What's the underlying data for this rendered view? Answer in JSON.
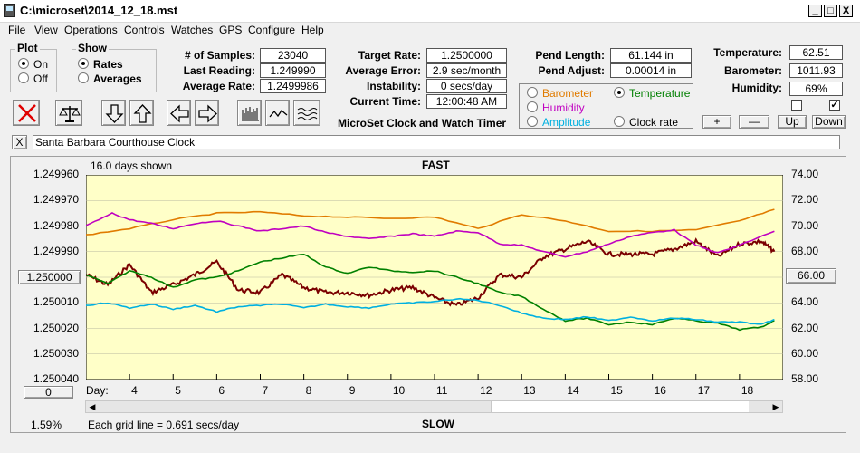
{
  "window": {
    "title": "C:\\microset\\2014_12_18.mst",
    "min": "_",
    "max": "□",
    "close": "X"
  },
  "menu": [
    "File",
    "View",
    "Operations",
    "Controls",
    "Watches",
    "GPS",
    "Configure",
    "Help"
  ],
  "plot_group": {
    "label": "Plot",
    "options": [
      "On",
      "Off"
    ],
    "selected": "On"
  },
  "show_group": {
    "label": "Show",
    "options": [
      "Rates",
      "Averages"
    ],
    "selected": "Rates"
  },
  "stats_left": [
    {
      "label": "# of Samples:",
      "value": "23040"
    },
    {
      "label": "Last Reading:",
      "value": "1.249990"
    },
    {
      "label": "Average Rate:",
      "value": "1.2499986"
    }
  ],
  "stats_mid": [
    {
      "label": "Target Rate:",
      "value": "1.2500000"
    },
    {
      "label": "Average Error:",
      "value": "2.9 sec/month"
    },
    {
      "label": "Instability:",
      "value": "0 secs/day"
    },
    {
      "label": "Current Time:",
      "value": "12:00:48 AM"
    }
  ],
  "app_name": "MicroSet Clock and Watch Timer",
  "pend": [
    {
      "label": "Pend Length:",
      "value": "61.144 in"
    },
    {
      "label": "Pend Adjust:",
      "value": "0.00014 in"
    }
  ],
  "env": [
    {
      "label": "Temperature:",
      "value": "62.51"
    },
    {
      "label": "Barometer:",
      "value": "1011.93"
    },
    {
      "label": "Humidity:",
      "value": "69%"
    }
  ],
  "env_checks": [
    false,
    true
  ],
  "env_buttons": [
    "+",
    "—",
    "Up",
    "Down"
  ],
  "sensor_options": [
    {
      "label": "Barometer",
      "color": "#e07b00",
      "selected": false
    },
    {
      "label": "Temperature",
      "color": "#008000",
      "selected": true
    },
    {
      "label": "Humidity",
      "color": "#c000c0",
      "selected": false
    },
    {
      "label": "Amplitude",
      "color": "#00b0e0",
      "selected": false
    },
    {
      "label": "Clock rate",
      "color": "#000000",
      "selected": false
    }
  ],
  "clock_name": "Santa Barbara Courthouse Clock",
  "clear_label": "X",
  "chart_data": {
    "type": "line",
    "top_label": "FAST",
    "bottom_label": "SLOW",
    "days_shown": "16.0 days shown",
    "grid_note": "Each grid line = 0.691 secs/day",
    "percent": "1.59%",
    "x_title": "Day:",
    "x_ticks": [
      4,
      5,
      6,
      7,
      8,
      9,
      10,
      11,
      12,
      13,
      14,
      15,
      16,
      17,
      18
    ],
    "xlim": [
      3,
      19
    ],
    "left_axis": {
      "ticks": [
        "1.249960",
        "1.249970",
        "1.249980",
        "1.249990",
        "1.250000",
        "1.250010",
        "1.250020",
        "1.250030",
        "1.250040"
      ],
      "ylim": [
        1.24996,
        1.25004
      ],
      "reference_button": "1.250000"
    },
    "right_axis": {
      "ticks": [
        "74.00",
        "72.00",
        "70.00",
        "68.00",
        "66.00",
        "64.00",
        "62.00",
        "60.00",
        "58.00"
      ],
      "ylim": [
        58,
        74
      ],
      "reference_button": "66.00"
    },
    "scroll_button": "0",
    "series": [
      {
        "name": "Clock rate",
        "color": "#7a0000",
        "axis": "left",
        "x": [
          3.0,
          3.5,
          4.0,
          4.5,
          5.0,
          5.5,
          6.0,
          6.5,
          7.0,
          7.5,
          8.0,
          8.5,
          9.0,
          9.5,
          10.0,
          10.5,
          11.0,
          11.5,
          12.0,
          12.5,
          13.0,
          13.5,
          14.0,
          14.5,
          15.0,
          15.5,
          16.0,
          16.5,
          17.0,
          17.5,
          18.0,
          18.5,
          18.8
        ],
        "y": [
          1.249999,
          1.250003,
          1.249995,
          1.250006,
          1.250003,
          1.249999,
          1.249994,
          1.250005,
          1.250006,
          1.249999,
          1.250004,
          1.250006,
          1.250006,
          1.250007,
          1.250005,
          1.250004,
          1.250008,
          1.250011,
          1.250008,
          1.249999,
          1.25,
          1.249992,
          1.249989,
          1.249986,
          1.249991,
          1.249991,
          1.249991,
          1.249989,
          1.249986,
          1.249992,
          1.249987,
          1.249986,
          1.24999
        ]
      },
      {
        "name": "Barometer",
        "color": "#e07b00",
        "axis": "right",
        "x": [
          3.0,
          4.0,
          5.0,
          6.0,
          7.0,
          8.0,
          9.0,
          10.0,
          11.0,
          12.0,
          13.0,
          14.0,
          15.0,
          16.0,
          17.0,
          18.0,
          18.8
        ],
        "y": [
          69.3,
          69.8,
          70.5,
          71.0,
          71.1,
          70.8,
          70.7,
          70.6,
          70.7,
          69.8,
          70.9,
          70.4,
          69.6,
          69.6,
          69.7,
          70.4,
          71.3
        ]
      },
      {
        "name": "Humidity",
        "color": "#c000c0",
        "axis": "right",
        "x": [
          3.0,
          3.6,
          4.0,
          4.5,
          5.0,
          5.5,
          6.0,
          6.5,
          7.0,
          7.5,
          8.0,
          8.5,
          9.0,
          9.5,
          10.0,
          10.5,
          11.0,
          11.5,
          12.0,
          12.5,
          13.0,
          13.5,
          14.0,
          14.5,
          15.0,
          15.5,
          16.0,
          16.5,
          17.0,
          17.5,
          18.0,
          18.8
        ],
        "y": [
          70.0,
          71.0,
          70.5,
          70.2,
          69.8,
          70.2,
          70.4,
          70.0,
          69.6,
          69.8,
          70.0,
          69.5,
          69.2,
          69.0,
          69.2,
          69.4,
          69.2,
          69.6,
          69.5,
          68.6,
          68.5,
          68.0,
          67.6,
          68.0,
          68.6,
          69.2,
          69.5,
          69.7,
          68.5,
          67.9,
          68.5,
          69.6
        ]
      },
      {
        "name": "Temperature",
        "color": "#008000",
        "axis": "right",
        "x": [
          3.0,
          3.5,
          4.0,
          4.5,
          5.0,
          5.5,
          6.0,
          6.5,
          7.0,
          7.5,
          8.0,
          8.5,
          9.0,
          9.5,
          10.0,
          10.5,
          11.0,
          11.5,
          12.0,
          12.5,
          13.0,
          13.5,
          14.0,
          14.5,
          15.0,
          15.5,
          16.0,
          16.5,
          17.0,
          17.5,
          18.0,
          18.5,
          18.8
        ],
        "y": [
          66.2,
          65.5,
          66.5,
          66.0,
          65.2,
          65.8,
          66.0,
          66.5,
          67.2,
          67.5,
          67.8,
          66.8,
          66.3,
          66.8,
          66.5,
          66.4,
          66.5,
          66.0,
          65.5,
          64.8,
          64.5,
          63.5,
          62.6,
          62.8,
          62.3,
          62.5,
          62.3,
          62.8,
          62.6,
          62.4,
          61.9,
          62.1,
          62.6
        ]
      },
      {
        "name": "Amplitude",
        "color": "#00b0e0",
        "axis": "right",
        "x": [
          3.0,
          3.5,
          4.0,
          4.5,
          5.0,
          5.5,
          6.0,
          6.5,
          7.0,
          7.5,
          8.0,
          8.5,
          9.0,
          9.5,
          10.0,
          10.5,
          11.0,
          11.5,
          12.0,
          12.5,
          13.0,
          13.5,
          14.0,
          14.5,
          15.0,
          15.5,
          16.0,
          16.5,
          17.0,
          17.5,
          18.0,
          18.5,
          18.8
        ],
        "y": [
          63.8,
          64.0,
          63.6,
          63.9,
          63.5,
          63.8,
          63.3,
          63.7,
          63.8,
          63.9,
          63.6,
          63.9,
          63.7,
          63.6,
          63.9,
          64.0,
          64.1,
          64.3,
          64.2,
          63.8,
          63.2,
          62.8,
          62.7,
          62.9,
          62.6,
          62.9,
          62.6,
          62.8,
          62.7,
          62.5,
          62.5,
          62.3,
          62.7
        ]
      }
    ]
  }
}
